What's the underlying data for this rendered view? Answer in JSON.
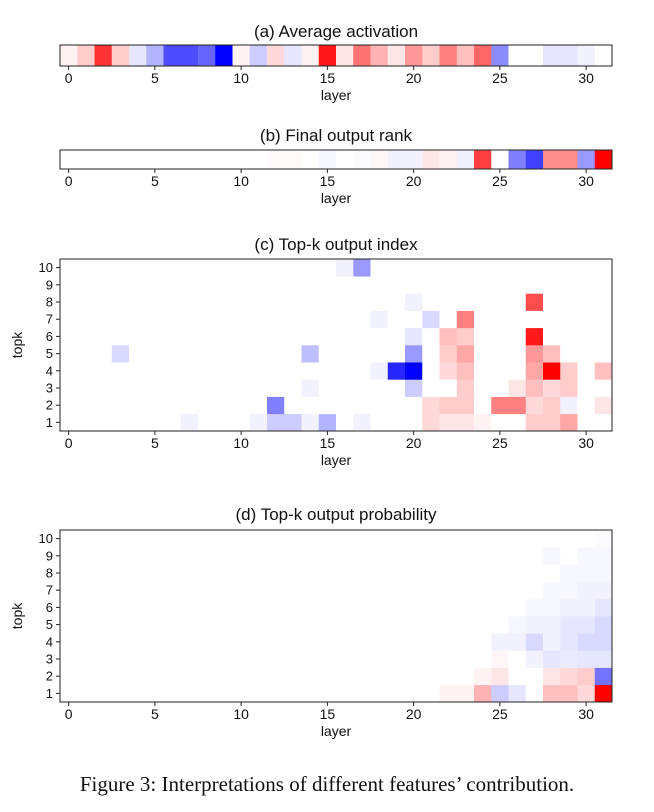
{
  "caption": "Figure 3: Interpretations of different features’ contribution.",
  "chart_data": [
    {
      "type": "heatmap",
      "id": "a",
      "title": "(a) Average activation",
      "xlabel": "layer",
      "ylabel": "",
      "x_ticks": [
        0,
        5,
        10,
        15,
        20,
        25,
        30
      ],
      "y_ticks": [],
      "n_cols": 32,
      "n_rows": 1,
      "value_range": [
        -1,
        1
      ],
      "values": [
        [
          0.05,
          0.2,
          0.8,
          0.2,
          -0.1,
          -0.3,
          -0.7,
          -0.7,
          -0.6,
          -1.0,
          0.05,
          -0.2,
          0.15,
          -0.1,
          0.05,
          0.9,
          0.1,
          0.55,
          0.3,
          0.1,
          0.4,
          0.2,
          0.5,
          0.25,
          0.6,
          -0.45,
          0.0,
          0.0,
          -0.1,
          -0.1,
          -0.05,
          0.0
        ]
      ]
    },
    {
      "type": "heatmap",
      "id": "b",
      "title": "(b) Final output rank",
      "xlabel": "layer",
      "ylabel": "",
      "x_ticks": [
        0,
        5,
        10,
        15,
        20,
        25,
        30
      ],
      "y_ticks": [],
      "n_cols": 32,
      "n_rows": 1,
      "value_range": [
        -1,
        1
      ],
      "values": [
        [
          0,
          0,
          0,
          0,
          0,
          0,
          0,
          0,
          0,
          0,
          0,
          0,
          0.02,
          0.02,
          0,
          -0.03,
          0,
          -0.02,
          0.03,
          -0.05,
          -0.05,
          0.1,
          0.05,
          -0.05,
          0.75,
          0.0,
          -0.5,
          -0.75,
          0.45,
          0.45,
          -0.4,
          1.0
        ]
      ]
    },
    {
      "type": "heatmap",
      "id": "c",
      "title": "(c) Top-k output index",
      "xlabel": "layer",
      "ylabel": "topk",
      "x_ticks": [
        0,
        5,
        10,
        15,
        20,
        25,
        30
      ],
      "y_ticks": [
        1,
        2,
        3,
        4,
        5,
        6,
        7,
        8,
        9,
        10
      ],
      "n_cols": 32,
      "n_rows": 10,
      "value_range": [
        -1,
        1
      ],
      "values": [
        [
          0,
          0,
          0,
          0,
          0,
          0,
          0,
          -0.05,
          0,
          0,
          0,
          -0.05,
          -0.2,
          -0.2,
          -0.05,
          -0.3,
          0,
          -0.05,
          0,
          0,
          0,
          0.15,
          0.1,
          0.1,
          0.05,
          0,
          0,
          0.2,
          0.2,
          0.35,
          0,
          0
        ],
        [
          0,
          0,
          0,
          0,
          0,
          0,
          0,
          0,
          0,
          0,
          0,
          0,
          -0.5,
          0,
          0,
          0,
          0,
          0,
          0,
          0,
          0,
          0.15,
          0.2,
          0.2,
          0,
          0.5,
          0.5,
          0.15,
          0.2,
          -0.05,
          0,
          0.1
        ],
        [
          0,
          0,
          0,
          0,
          0,
          0,
          0,
          0,
          0,
          0,
          0,
          0,
          0,
          0,
          -0.05,
          0,
          0,
          0,
          0,
          0,
          -0.2,
          0,
          0,
          0.2,
          0,
          0,
          0.1,
          0.25,
          0.15,
          0.2,
          0,
          0
        ],
        [
          0,
          0,
          0,
          0,
          0,
          0,
          0,
          0,
          0,
          0,
          0,
          0,
          0,
          0,
          0,
          0,
          0,
          0,
          -0.05,
          -0.85,
          -1.0,
          0,
          0.15,
          0.25,
          0,
          0,
          0,
          0.35,
          1.0,
          0.2,
          0,
          0.25
        ],
        [
          0,
          0,
          0,
          -0.15,
          0,
          0,
          0,
          0,
          0,
          0,
          0,
          0,
          0,
          0,
          -0.25,
          0,
          0,
          0,
          0,
          0,
          -0.4,
          0,
          0.2,
          0.35,
          0,
          0,
          0,
          0.4,
          0.25,
          0,
          0,
          0
        ],
        [
          0,
          0,
          0,
          0,
          0,
          0,
          0,
          0,
          0,
          0,
          0,
          0,
          0,
          0,
          0,
          0,
          0,
          0,
          0,
          0,
          -0.1,
          0,
          0.25,
          0.2,
          0,
          0,
          0,
          0.9,
          0,
          0,
          0,
          0
        ],
        [
          0,
          0,
          0,
          0,
          0,
          0,
          0,
          0,
          0,
          0,
          0,
          0,
          0,
          0,
          0,
          0,
          0,
          0,
          -0.05,
          0,
          0,
          -0.15,
          0,
          0.5,
          0,
          0,
          0,
          0,
          0,
          0,
          0,
          0
        ],
        [
          0,
          0,
          0,
          0,
          0,
          0,
          0,
          0,
          0,
          0,
          0,
          0,
          0,
          0,
          0,
          0,
          0,
          0,
          0,
          0,
          -0.05,
          0,
          0,
          0,
          0,
          0,
          0,
          0.7,
          0,
          0,
          0,
          0
        ],
        [
          0,
          0,
          0,
          0,
          0,
          0,
          0,
          0,
          0,
          0,
          0,
          0,
          0,
          0,
          0,
          0,
          0,
          0,
          0,
          0,
          0,
          0,
          0,
          0,
          0,
          0,
          0,
          0,
          0,
          0,
          0,
          0
        ],
        [
          0,
          0,
          0,
          0,
          0,
          0,
          0,
          0,
          0,
          0,
          0,
          0,
          0,
          0,
          0,
          0,
          -0.05,
          -0.4,
          0,
          0,
          0,
          0,
          0,
          0,
          0,
          0,
          0,
          0,
          0,
          0,
          0,
          0
        ]
      ]
    },
    {
      "type": "heatmap",
      "id": "d",
      "title": "(d) Top-k output probability",
      "xlabel": "layer",
      "ylabel": "topk",
      "x_ticks": [
        0,
        5,
        10,
        15,
        20,
        25,
        30
      ],
      "y_ticks": [
        1,
        2,
        3,
        4,
        5,
        6,
        7,
        8,
        9,
        10
      ],
      "n_cols": 32,
      "n_rows": 10,
      "value_range": [
        -1,
        1
      ],
      "values": [
        [
          0,
          0,
          0,
          0,
          0,
          0,
          0,
          0,
          0,
          0,
          0,
          0,
          0,
          0,
          0,
          0,
          0,
          0,
          0,
          0,
          0,
          0,
          0.05,
          0.05,
          0.3,
          -0.2,
          -0.1,
          0,
          0.25,
          0.25,
          0.15,
          1.0
        ],
        [
          0,
          0,
          0,
          0,
          0,
          0,
          0,
          0,
          0,
          0,
          0,
          0,
          0,
          0,
          0,
          0,
          0,
          0,
          0,
          0,
          0,
          0,
          0,
          0,
          0.05,
          0.1,
          0,
          0,
          0.1,
          0.15,
          0.2,
          -0.55
        ],
        [
          0,
          0,
          0,
          0,
          0,
          0,
          0,
          0,
          0,
          0,
          0,
          0,
          0,
          0,
          0,
          0,
          0,
          0,
          0,
          0,
          0,
          0,
          0,
          0,
          0,
          0.03,
          0,
          -0.05,
          -0.1,
          -0.08,
          -0.1,
          -0.1
        ],
        [
          0,
          0,
          0,
          0,
          0,
          0,
          0,
          0,
          0,
          0,
          0,
          0,
          0,
          0,
          0,
          0,
          0,
          0,
          0,
          0,
          0,
          0,
          0,
          0,
          0,
          -0.05,
          -0.05,
          -0.15,
          -0.05,
          -0.1,
          -0.15,
          -0.15
        ],
        [
          0,
          0,
          0,
          0,
          0,
          0,
          0,
          0,
          0,
          0,
          0,
          0,
          0,
          0,
          0,
          0,
          0,
          0,
          0,
          0,
          0,
          0,
          0,
          0,
          0,
          0,
          -0.03,
          -0.05,
          -0.05,
          -0.1,
          -0.1,
          -0.15
        ],
        [
          0,
          0,
          0,
          0,
          0,
          0,
          0,
          0,
          0,
          0,
          0,
          0,
          0,
          0,
          0,
          0,
          0,
          0,
          0,
          0,
          0,
          0,
          0,
          0,
          0,
          0,
          0,
          -0.03,
          -0.03,
          -0.05,
          -0.05,
          -0.1
        ],
        [
          0,
          0,
          0,
          0,
          0,
          0,
          0,
          0,
          0,
          0,
          0,
          0,
          0,
          0,
          0,
          0,
          0,
          0,
          0,
          0,
          0,
          0,
          0,
          0,
          0,
          0,
          0,
          0,
          -0.03,
          -0.03,
          -0.05,
          -0.05
        ],
        [
          0,
          0,
          0,
          0,
          0,
          0,
          0,
          0,
          0,
          0,
          0,
          0,
          0,
          0,
          0,
          0,
          0,
          0,
          0,
          0,
          0,
          0,
          0,
          0,
          0,
          0,
          0,
          0,
          0,
          -0.03,
          -0.03,
          -0.03
        ],
        [
          0,
          0,
          0,
          0,
          0,
          0,
          0,
          0,
          0,
          0,
          0,
          0,
          0,
          0,
          0,
          0,
          0,
          0,
          0,
          0,
          0,
          0,
          0,
          0,
          0,
          0,
          0,
          0,
          -0.03,
          0,
          -0.03,
          -0.03
        ],
        [
          0,
          0,
          0,
          0,
          0,
          0,
          0,
          0,
          0,
          0,
          0,
          0,
          0,
          0,
          0,
          0,
          0,
          0,
          0,
          0,
          0,
          0,
          0,
          0,
          0,
          0,
          0,
          0,
          0,
          0,
          0,
          -0.02
        ]
      ]
    }
  ]
}
